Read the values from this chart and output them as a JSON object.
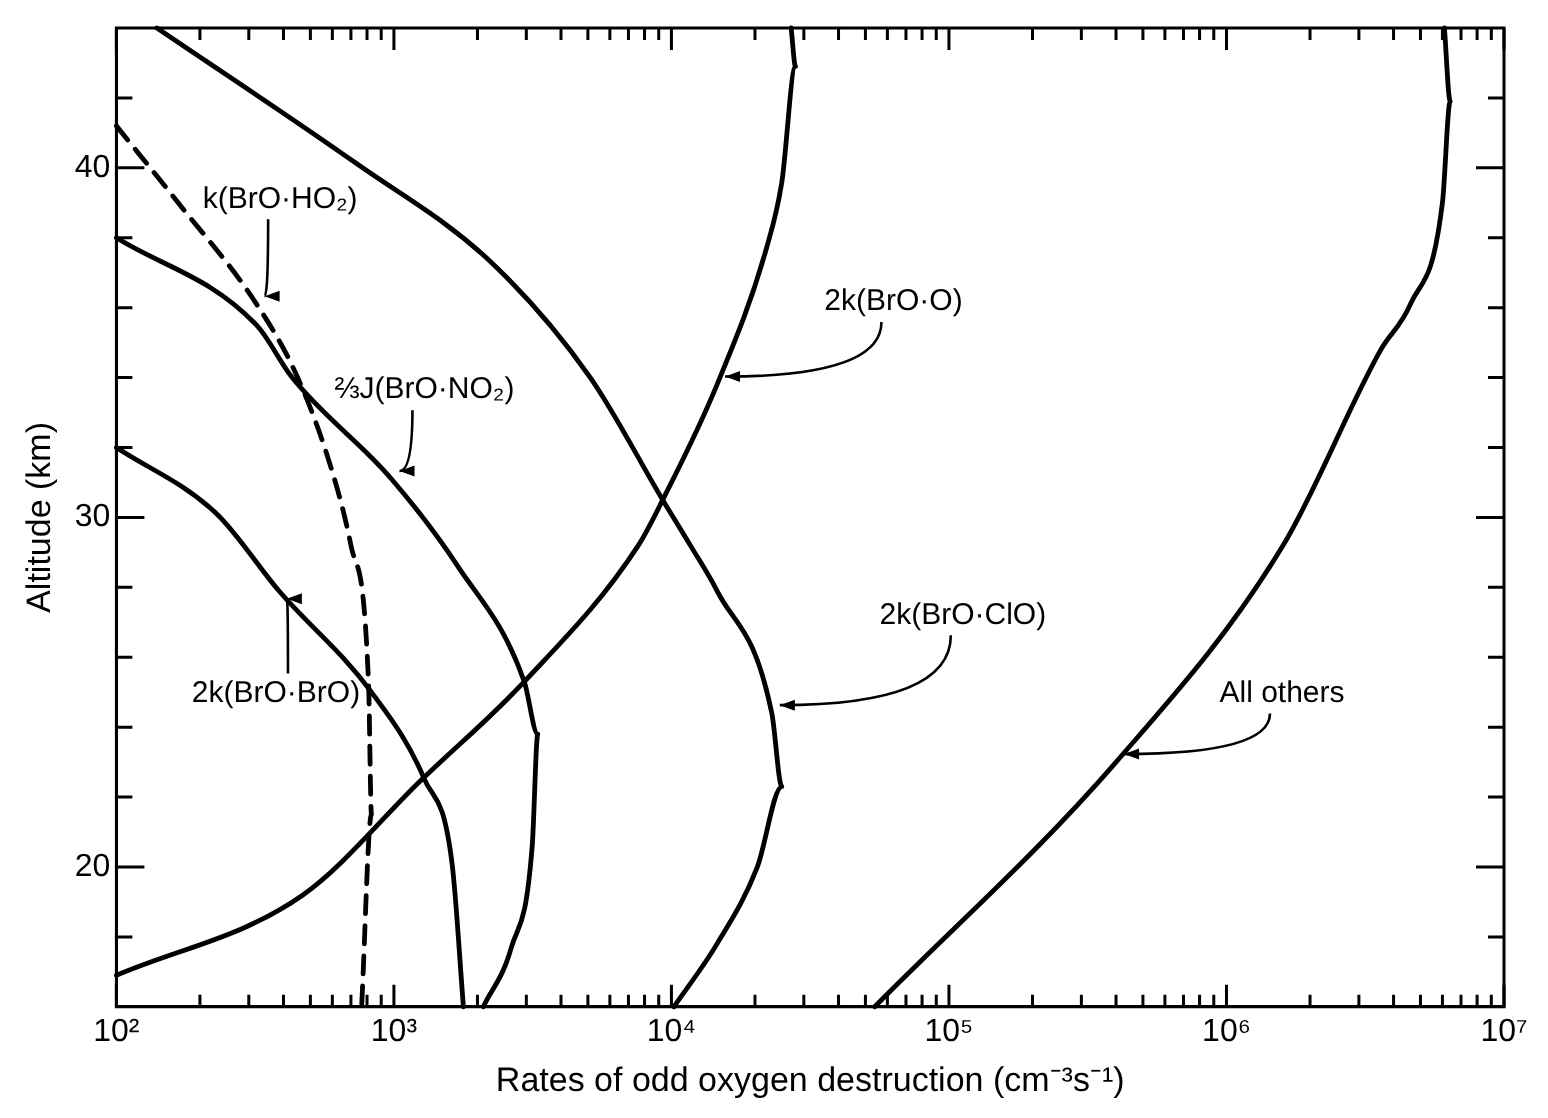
{
  "chart_data": {
    "type": "line",
    "xlabel": "Rates of odd oxygen destruction (cm⁻³s⁻¹)",
    "ylabel": "Altitude (km)",
    "log": "x",
    "grid": false,
    "legend": false,
    "marker": "none",
    "xlim": [
      100,
      10000000
    ],
    "xticks": [
      {
        "value": 100,
        "label": "10²"
      },
      {
        "value": 200,
        "label": null
      },
      {
        "value": 300,
        "label": null
      },
      {
        "value": 400,
        "label": null
      },
      {
        "value": 500,
        "label": null
      },
      {
        "value": 600,
        "label": null
      },
      {
        "value": 700,
        "label": null
      },
      {
        "value": 800,
        "label": null
      },
      {
        "value": 900,
        "label": null
      },
      {
        "value": 1000,
        "label": "10³"
      },
      {
        "value": 2000,
        "label": null
      },
      {
        "value": 3000,
        "label": null
      },
      {
        "value": 4000,
        "label": null
      },
      {
        "value": 5000,
        "label": null
      },
      {
        "value": 6000,
        "label": null
      },
      {
        "value": 7000,
        "label": null
      },
      {
        "value": 8000,
        "label": null
      },
      {
        "value": 9000,
        "label": null
      },
      {
        "value": 10000,
        "label": "10⁴"
      },
      {
        "value": 20000,
        "label": null
      },
      {
        "value": 30000,
        "label": null
      },
      {
        "value": 40000,
        "label": null
      },
      {
        "value": 50000,
        "label": null
      },
      {
        "value": 60000,
        "label": null
      },
      {
        "value": 70000,
        "label": null
      },
      {
        "value": 80000,
        "label": null
      },
      {
        "value": 90000,
        "label": null
      },
      {
        "value": 100000,
        "label": "10⁵"
      },
      {
        "value": 200000,
        "label": null
      },
      {
        "value": 300000,
        "label": null
      },
      {
        "value": 400000,
        "label": null
      },
      {
        "value": 500000,
        "label": null
      },
      {
        "value": 600000,
        "label": null
      },
      {
        "value": 700000,
        "label": null
      },
      {
        "value": 800000,
        "label": null
      },
      {
        "value": 900000,
        "label": null
      },
      {
        "value": 1000000,
        "label": "10⁶"
      },
      {
        "value": 2000000,
        "label": null
      },
      {
        "value": 3000000,
        "label": null
      },
      {
        "value": 4000000,
        "label": null
      },
      {
        "value": 5000000,
        "label": null
      },
      {
        "value": 6000000,
        "label": null
      },
      {
        "value": 7000000,
        "label": null
      },
      {
        "value": 8000000,
        "label": null
      },
      {
        "value": 9000000,
        "label": null
      },
      {
        "value": 10000000,
        "label": "10⁷"
      }
    ],
    "ylim": [
      16,
      44
    ],
    "yticks": [
      {
        "value": 18,
        "label": null
      },
      20,
      {
        "value": 22,
        "label": null
      },
      {
        "value": 24,
        "label": null
      },
      {
        "value": 26,
        "label": null
      },
      {
        "value": 28,
        "label": null
      },
      30,
      {
        "value": 32,
        "label": null
      },
      {
        "value": 34,
        "label": null
      },
      {
        "value": 36,
        "label": null
      },
      {
        "value": 38,
        "label": null
      },
      40,
      {
        "value": 42,
        "label": null
      }
    ],
    "series": [
      {
        "name": "All others",
        "color": "#000000",
        "line_style": "solid",
        "x": [
          54000,
          400000,
          1600000,
          3600000,
          4600000,
          6000000,
          6400000,
          6100000
        ],
        "values": [
          16,
          23,
          29.2,
          34.8,
          36.1,
          39,
          41.9,
          44
        ]
      },
      {
        "name": "2k(BrO·O)",
        "color": "#000000",
        "line_style": "solid",
        "x": [
          100,
          470,
          1260,
          2950,
          7600,
          9300,
          14600,
          22000,
          25000,
          28000,
          27000
        ],
        "values": [
          16.9,
          19.2,
          22.5,
          25.3,
          29.2,
          30.5,
          33.8,
          37.7,
          39.6,
          42.9,
          44
        ]
      },
      {
        "name": "2k(BrO·ClO)",
        "color": "#000000",
        "line_style": "solid",
        "x": [
          10200,
          14600,
          20400,
          25000,
          23000,
          14600,
          11700,
          9300,
          5100,
          2240,
          740,
          140
        ],
        "values": [
          16,
          17.8,
          20,
          22.3,
          24.4,
          27.9,
          29.2,
          30.5,
          34,
          37.3,
          40.1,
          44
        ]
      },
      {
        "name": "⅔J(BrO·NO₂)",
        "color": "#000000",
        "line_style": "solid",
        "x": [
          100,
          320,
          430,
          980,
          1700,
          2950,
          3300,
          3150,
          2650,
          2100
        ],
        "values": [
          38,
          35.5,
          34,
          31.1,
          28.6,
          25.3,
          23.8,
          20.6,
          17.7,
          16
        ]
      },
      {
        "name": "2k(BrO·BrO)",
        "color": "#000000",
        "line_style": "solid",
        "x": [
          100,
          230,
          385,
          830,
          1290,
          1620,
          1780
        ],
        "values": [
          32,
          30.1,
          27.9,
          25,
          22.5,
          20.1,
          16
        ]
      },
      {
        "name": "k(BrO·HO₂)",
        "color": "#000000",
        "line_style": "dashed",
        "x": [
          100,
          167,
          320,
          450,
          600,
          700,
          810,
          830,
          765
        ],
        "values": [
          41.2,
          39,
          36.1,
          34,
          31.3,
          29.2,
          25.3,
          21.5,
          16
        ]
      }
    ]
  }
}
